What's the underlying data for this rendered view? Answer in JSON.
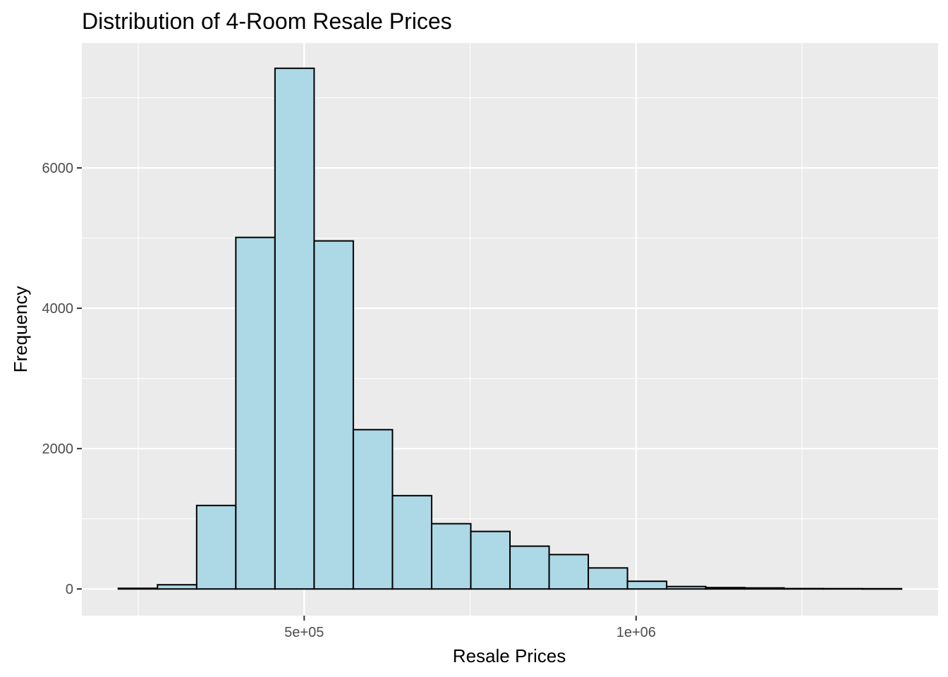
{
  "chart_data": {
    "type": "bar",
    "title": "Distribution of 4-Room Resale Prices",
    "xlabel": "Resale Prices",
    "ylabel": "Frequency",
    "bin_width": 59000,
    "bins": [
      {
        "x_start": 220000,
        "x_end": 279000,
        "count": 10
      },
      {
        "x_start": 279000,
        "x_end": 338000,
        "count": 60
      },
      {
        "x_start": 338000,
        "x_end": 397000,
        "count": 1190
      },
      {
        "x_start": 397000,
        "x_end": 456000,
        "count": 5010
      },
      {
        "x_start": 456000,
        "x_end": 515000,
        "count": 7420
      },
      {
        "x_start": 515000,
        "x_end": 574000,
        "count": 4960
      },
      {
        "x_start": 574000,
        "x_end": 633000,
        "count": 2270
      },
      {
        "x_start": 633000,
        "x_end": 692000,
        "count": 1330
      },
      {
        "x_start": 692000,
        "x_end": 751000,
        "count": 930
      },
      {
        "x_start": 751000,
        "x_end": 810000,
        "count": 820
      },
      {
        "x_start": 810000,
        "x_end": 869000,
        "count": 610
      },
      {
        "x_start": 869000,
        "x_end": 928000,
        "count": 490
      },
      {
        "x_start": 928000,
        "x_end": 987000,
        "count": 300
      },
      {
        "x_start": 987000,
        "x_end": 1046000,
        "count": 110
      },
      {
        "x_start": 1046000,
        "x_end": 1105000,
        "count": 35
      },
      {
        "x_start": 1105000,
        "x_end": 1164000,
        "count": 20
      },
      {
        "x_start": 1164000,
        "x_end": 1223000,
        "count": 15
      },
      {
        "x_start": 1223000,
        "x_end": 1282000,
        "count": 6
      },
      {
        "x_start": 1282000,
        "x_end": 1341000,
        "count": 5
      },
      {
        "x_start": 1341000,
        "x_end": 1400000,
        "count": 4
      }
    ],
    "xlim": [
      165000,
      1455000
    ],
    "ylim": [
      -380,
      7780
    ],
    "x_ticks": [
      {
        "value": 500000,
        "label": "5e+05"
      },
      {
        "value": 1000000,
        "label": "1e+06"
      }
    ],
    "y_ticks": [
      {
        "value": 0,
        "label": "0"
      },
      {
        "value": 2000,
        "label": "2000"
      },
      {
        "value": 4000,
        "label": "4000"
      },
      {
        "value": 6000,
        "label": "6000"
      }
    ],
    "grid": true,
    "bar_fill": "#add8e6",
    "bar_stroke": "#000000",
    "panel_background": "#ebebeb",
    "grid_color": "#ffffff"
  }
}
